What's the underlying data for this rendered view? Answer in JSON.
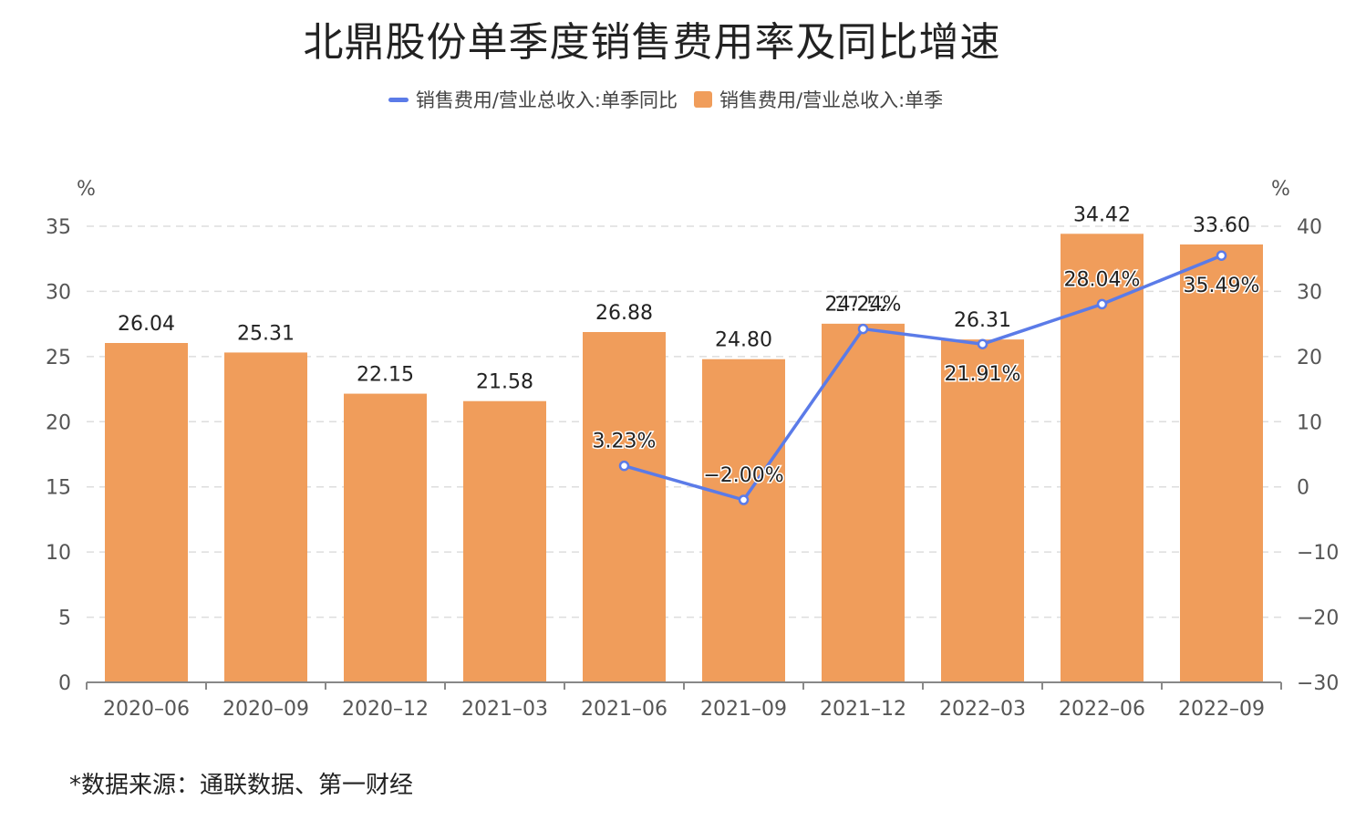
{
  "title": "北鼎股份单季度销售费用率及同比增速",
  "source": "*数据来源：通联数据、第一财经",
  "colors": {
    "bar": "#F09D5B",
    "line": "#5B7BE8",
    "grid": "#DDDDDD",
    "axis": "#888888"
  },
  "chart_data": {
    "type": "bar",
    "categories": [
      "2020-06",
      "2020-09",
      "2020-12",
      "2021-03",
      "2021-06",
      "2021-09",
      "2021-12",
      "2022-03",
      "2022-06",
      "2022-09"
    ],
    "series": [
      {
        "name": "销售费用/营业总收入:单季同比",
        "type": "line",
        "axis": "right",
        "values": [
          null,
          null,
          null,
          null,
          3.23,
          -2.0,
          24.24,
          21.91,
          28.04,
          35.49
        ],
        "labels": [
          "",
          "",
          "",
          "",
          "3.23%",
          "-2.00%",
          "24.24%",
          "21.91%",
          "28.04%",
          "35.49%"
        ]
      },
      {
        "name": "销售费用/营业总收入:单季",
        "type": "bar",
        "axis": "left",
        "values": [
          26.04,
          25.31,
          22.15,
          21.58,
          26.88,
          24.8,
          27.52,
          26.31,
          34.42,
          33.6
        ],
        "labels": [
          "26.04",
          "25.31",
          "22.15",
          "21.58",
          "26.88",
          "24.80",
          "27.52",
          "26.31",
          "34.42",
          "33.60"
        ]
      }
    ],
    "left_axis": {
      "unit": "%",
      "ylim": [
        0,
        35
      ],
      "ticks": [
        "0",
        "5",
        "10",
        "15",
        "20",
        "25",
        "30",
        "35"
      ]
    },
    "right_axis": {
      "unit": "%",
      "ylim": [
        -30,
        40
      ],
      "ticks": [
        "-30",
        "-20",
        "-10",
        "0",
        "10",
        "20",
        "30",
        "40"
      ]
    },
    "grid": true,
    "legend": "top-center"
  }
}
